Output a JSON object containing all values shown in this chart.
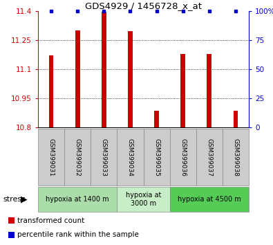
{
  "title": "GDS4929 / 1456728_x_at",
  "samples": [
    "GSM399031",
    "GSM399032",
    "GSM399033",
    "GSM399034",
    "GSM399035",
    "GSM399036",
    "GSM399037",
    "GSM399038"
  ],
  "transformed_count": [
    11.17,
    11.3,
    11.395,
    11.295,
    10.885,
    11.18,
    11.18,
    10.885
  ],
  "percentile_rank": [
    100,
    100,
    100,
    100,
    100,
    100,
    100,
    100
  ],
  "ylim_left": [
    10.8,
    11.4
  ],
  "ylim_right": [
    0,
    100
  ],
  "yticks_left": [
    10.8,
    10.95,
    11.1,
    11.25,
    11.4
  ],
  "yticks_right": [
    0,
    25,
    50,
    75,
    100
  ],
  "bar_color": "#cc0000",
  "scatter_color": "#0000cc",
  "bar_width": 0.18,
  "groups": [
    {
      "label": "hypoxia at 1400 m",
      "start": 0,
      "end": 3,
      "color": "#aaddaa"
    },
    {
      "label": "hypoxia at\n3000 m",
      "start": 3,
      "end": 5,
      "color": "#c8eec8"
    },
    {
      "label": "hypoxia at 4500 m",
      "start": 5,
      "end": 8,
      "color": "#55cc55"
    }
  ],
  "stress_label": "stress",
  "legend_items": [
    {
      "color": "#cc0000",
      "label": "transformed count"
    },
    {
      "color": "#0000cc",
      "label": "percentile rank within the sample"
    }
  ],
  "label_box_color": "#cccccc",
  "fig_width": 3.95,
  "fig_height": 3.54,
  "fig_dpi": 100
}
